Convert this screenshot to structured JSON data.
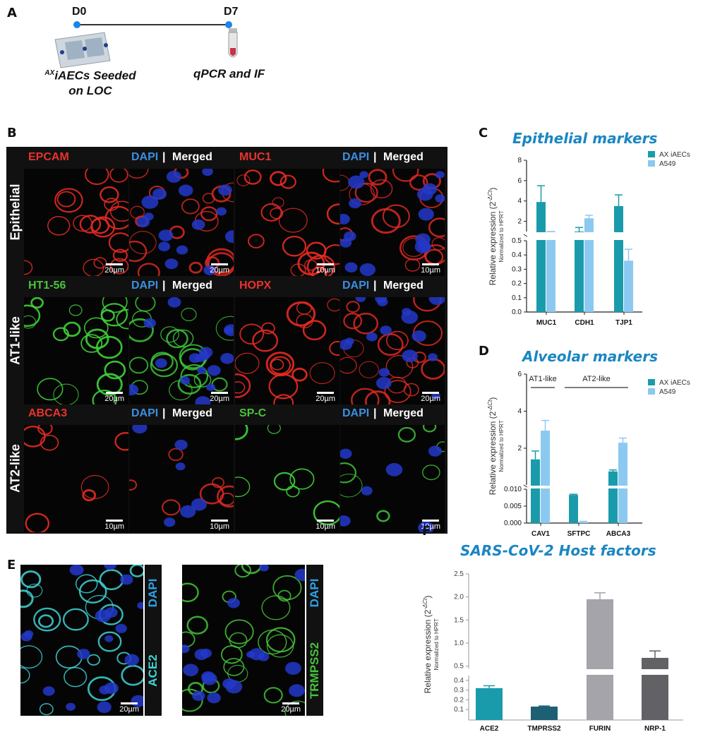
{
  "panels": {
    "a": {
      "letter": "A",
      "d0": "D0",
      "d7": "D7",
      "seeded_sup": "AX",
      "seeded_line1": "iAECs Seeded",
      "seeded_line2": "on LOC",
      "assay": "qPCR and IF"
    },
    "b": {
      "letter": "B",
      "rows": [
        {
          "label": "Epithelial",
          "headers": [
            {
              "marker": "EPCAM",
              "color": "#e8332c"
            },
            {
              "marker": "MUC1",
              "color": "#e8332c"
            }
          ],
          "scales": [
            "20µm",
            "20µm",
            "10µm",
            "10µm"
          ]
        },
        {
          "label": "AT1-like",
          "headers": [
            {
              "marker": "HT1-56",
              "color": "#49c43a"
            },
            {
              "marker": "HOPX",
              "color": "#e8332c"
            }
          ],
          "scales": [
            "20µm",
            "20µm",
            "20µm",
            "20µm"
          ]
        },
        {
          "label": "AT2-like",
          "headers": [
            {
              "marker": "ABCA3",
              "color": "#e8332c"
            },
            {
              "marker": "SP-C",
              "color": "#49c43a"
            }
          ],
          "scales": [
            "10µm",
            "10µm",
            "10µm",
            "10µm"
          ]
        }
      ],
      "dapi": "DAPI",
      "sep": "|",
      "merged": "Merged"
    },
    "e": {
      "letter": "E",
      "img1_labels": [
        "DAPI",
        "ACE2"
      ],
      "img2_labels": [
        "DAPI",
        "TRMPSS2"
      ],
      "scale1": "20µm",
      "scale2": "20µm"
    }
  },
  "chart_data": [
    {
      "id": "C",
      "letter": "C",
      "type": "bar",
      "title": "Epithelial markers",
      "ylabel": "Relative expression (2",
      "ylabel_sup": "-ΔCt",
      "ylabel_close": ")",
      "ylabel2": "Normalized to HPRT",
      "categories": [
        "MUC1",
        "CDH1",
        "TJP1"
      ],
      "series": [
        {
          "name": "AX iAECs",
          "color": "#1a9bab",
          "values": [
            3.9,
            0.9,
            3.5
          ],
          "errors": [
            1.6,
            0.5,
            1.1
          ]
        },
        {
          "name": "A549",
          "color": "#8cc9f0",
          "values": [
            0.55,
            2.3,
            0.36
          ],
          "errors": [
            0.15,
            0.3,
            0.08
          ]
        }
      ],
      "axis_segments": [
        {
          "range": [
            0,
            0.5
          ],
          "ticks": [
            "0.0",
            "0.1",
            "0.2",
            "0.3",
            "0.4",
            "0.5"
          ]
        },
        {
          "range": [
            1,
            8
          ],
          "ticks": [
            "2",
            "4",
            "6",
            "8"
          ]
        }
      ]
    },
    {
      "id": "D",
      "letter": "D",
      "type": "bar",
      "title": "Alveolar markers",
      "ylabel": "Relative expression (2",
      "ylabel_sup": "-ΔCt",
      "ylabel_close": ")",
      "ylabel2": "Normalized to HPRT",
      "categories": [
        "CAV1",
        "SFTPC",
        "ABCA3"
      ],
      "groups": [
        {
          "label": "AT1-like",
          "categories": [
            "CAV1"
          ]
        },
        {
          "label": "AT2-like",
          "categories": [
            "SFTPC",
            "ABCA3"
          ]
        }
      ],
      "series": [
        {
          "name": "AX iAECs",
          "color": "#1a9bab",
          "values": [
            1.4,
            0.0083,
            0.75
          ],
          "errors": [
            0.45,
            0.0002,
            0.08
          ]
        },
        {
          "name": "A549",
          "color": "#8cc9f0",
          "values": [
            2.95,
            0.0003,
            2.3
          ],
          "errors": [
            0.55,
            0.0002,
            0.25
          ]
        }
      ],
      "axis_segments": [
        {
          "range": [
            0,
            0.01
          ],
          "ticks": [
            "0.000",
            "0.005",
            "0.010"
          ]
        },
        {
          "range": [
            0.02,
            6
          ],
          "ticks": [
            "2",
            "4",
            "6"
          ]
        }
      ]
    },
    {
      "id": "F",
      "letter": "F",
      "type": "bar",
      "title": "SARS-CoV-2 Host factors",
      "ylabel": "Relative expression (2",
      "ylabel_sup": "-ΔCt",
      "ylabel_close": ")",
      "ylabel2": "Normalized to HPRT",
      "categories": [
        "ACE2",
        "TMPRSS2",
        "FURIN",
        "NRP-1"
      ],
      "series": [
        {
          "values": [
            0.32,
            0.13,
            1.95,
            0.68
          ],
          "errors": [
            0.025,
            0.006,
            0.14,
            0.15
          ],
          "colors": [
            "#1a9bab",
            "#1d5f73",
            "#a4a4aa",
            "#626266"
          ]
        }
      ],
      "axis_segments": [
        {
          "range": [
            0.05,
            0.45
          ],
          "ticks": [
            "0.1",
            "0.2",
            "0.3",
            "0.4"
          ]
        },
        {
          "range": [
            0.45,
            2.5
          ],
          "ticks": [
            "0.5",
            "1.0",
            "1.5",
            "2.0",
            "2.5"
          ]
        }
      ]
    }
  ]
}
